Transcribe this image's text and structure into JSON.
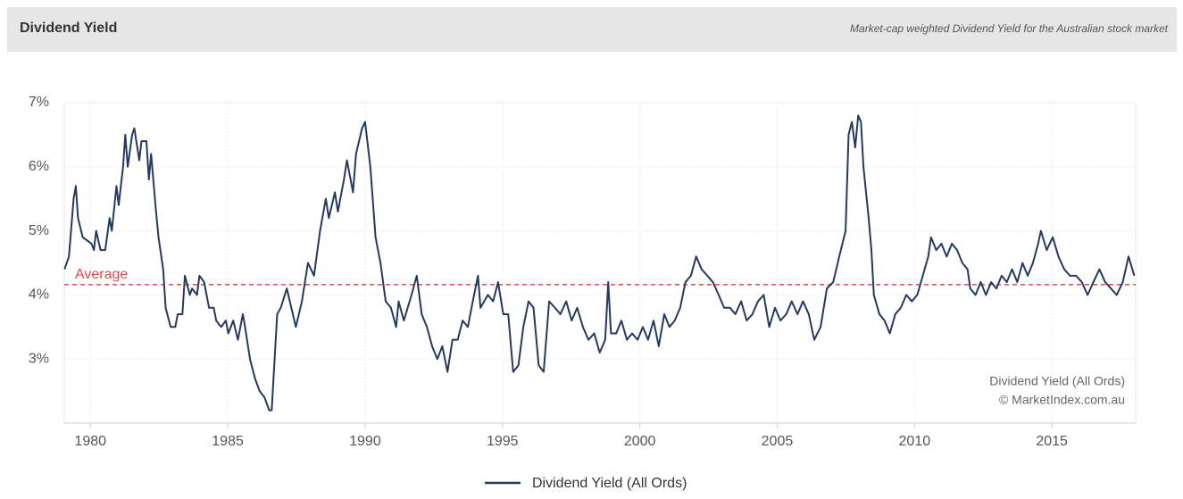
{
  "chart_data": {
    "type": "line",
    "title": "Dividend Yield",
    "subtitle": "Market-cap weighted Dividend Yield for the Australian stock market",
    "x": [
      1979.06,
      1979.22,
      1979.39,
      1979.47,
      1979.55,
      1979.72,
      1979.88,
      1980.04,
      1980.13,
      1980.21,
      1980.37,
      1980.54,
      1980.7,
      1980.78,
      1980.95,
      1981.03,
      1981.19,
      1981.27,
      1981.36,
      1981.52,
      1981.6,
      1981.78,
      1981.86,
      1982.04,
      1982.13,
      1982.21,
      1982.39,
      1982.48,
      1982.65,
      1982.74,
      1982.92,
      1983.09,
      1983.18,
      1983.35,
      1983.44,
      1983.62,
      1983.7,
      1983.88,
      1983.97,
      1984.14,
      1984.32,
      1984.49,
      1984.58,
      1984.76,
      1984.93,
      1985.02,
      1985.2,
      1985.37,
      1985.55,
      1985.63,
      1985.81,
      1985.99,
      1986.16,
      1986.34,
      1986.51,
      1986.6,
      1986.8,
      1986.93,
      1987.15,
      1987.37,
      1987.48,
      1987.7,
      1987.92,
      1988.14,
      1988.36,
      1988.57,
      1988.68,
      1988.9,
      1989.01,
      1989.23,
      1989.34,
      1989.56,
      1989.67,
      1989.89,
      1990.0,
      1990.19,
      1990.38,
      1990.56,
      1990.75,
      1990.94,
      1991.13,
      1991.22,
      1991.41,
      1991.69,
      1991.88,
      1992.06,
      1992.25,
      1992.44,
      1992.63,
      1992.81,
      1993.0,
      1993.18,
      1993.37,
      1993.55,
      1993.74,
      1993.92,
      1994.11,
      1994.2,
      1994.47,
      1994.66,
      1994.84,
      1995.03,
      1995.21,
      1995.39,
      1995.58,
      1995.76,
      1995.95,
      1996.13,
      1996.32,
      1996.5,
      1996.7,
      1996.91,
      1997.11,
      1997.32,
      1997.52,
      1997.72,
      1997.93,
      1998.13,
      1998.34,
      1998.54,
      1998.74,
      1998.85,
      1998.95,
      1999.14,
      1999.33,
      1999.53,
      1999.72,
      1999.92,
      2000.11,
      2000.3,
      2000.5,
      2000.69,
      2000.89,
      2001.08,
      2001.27,
      2001.47,
      2001.66,
      2001.86,
      2002.05,
      2002.25,
      2002.46,
      2002.66,
      2002.87,
      2003.07,
      2003.28,
      2003.48,
      2003.69,
      2003.89,
      2004.1,
      2004.3,
      2004.51,
      2004.71,
      2004.92,
      2005.12,
      2005.33,
      2005.53,
      2005.74,
      2005.94,
      2006.15,
      2006.35,
      2006.58,
      2006.81,
      2007.04,
      2007.26,
      2007.49,
      2007.6,
      2007.72,
      2007.84,
      2007.95,
      2008.05,
      2008.14,
      2008.33,
      2008.43,
      2008.52,
      2008.72,
      2008.91,
      2009.1,
      2009.3,
      2009.5,
      2009.7,
      2009.9,
      2010.1,
      2010.3,
      2010.5,
      2010.6,
      2010.79,
      2010.98,
      2011.17,
      2011.36,
      2011.55,
      2011.74,
      2011.93,
      2012.03,
      2012.22,
      2012.41,
      2012.6,
      2012.79,
      2012.98,
      2013.17,
      2013.36,
      2013.55,
      2013.74,
      2013.93,
      2014.12,
      2014.31,
      2014.5,
      2014.6,
      2014.81,
      2015.03,
      2015.24,
      2015.45,
      2015.66,
      2015.88,
      2016.09,
      2016.3,
      2016.51,
      2016.73,
      2016.94,
      2017.15,
      2017.36,
      2017.58,
      2017.79,
      2018.0
    ],
    "series": [
      {
        "name": "Dividend Yield (All Ords)",
        "color": "#253a5e",
        "values": [
          4.4,
          4.6,
          5.5,
          5.7,
          5.2,
          4.9,
          4.85,
          4.8,
          4.7,
          5.0,
          4.7,
          4.7,
          5.2,
          5.0,
          5.7,
          5.4,
          6.0,
          6.5,
          6.0,
          6.5,
          6.6,
          6.1,
          6.4,
          6.4,
          5.8,
          6.2,
          5.3,
          4.9,
          4.4,
          3.8,
          3.5,
          3.5,
          3.7,
          3.7,
          4.3,
          4.0,
          4.1,
          4.0,
          4.3,
          4.2,
          3.8,
          3.8,
          3.6,
          3.5,
          3.6,
          3.4,
          3.6,
          3.3,
          3.7,
          3.5,
          3.0,
          2.7,
          2.5,
          2.4,
          2.2,
          2.2,
          3.7,
          3.8,
          4.1,
          3.7,
          3.5,
          3.9,
          4.5,
          4.3,
          5.0,
          5.5,
          5.2,
          5.6,
          5.3,
          5.8,
          6.1,
          5.6,
          6.2,
          6.6,
          6.7,
          6.0,
          4.9,
          4.5,
          3.9,
          3.8,
          3.5,
          3.9,
          3.6,
          4.0,
          4.3,
          3.7,
          3.5,
          3.2,
          3.0,
          3.2,
          2.8,
          3.3,
          3.3,
          3.6,
          3.5,
          3.9,
          4.3,
          3.8,
          4.0,
          3.9,
          4.2,
          3.7,
          3.7,
          2.8,
          2.9,
          3.5,
          3.9,
          3.8,
          2.9,
          2.8,
          3.9,
          3.8,
          3.7,
          3.9,
          3.6,
          3.8,
          3.5,
          3.3,
          3.4,
          3.1,
          3.3,
          4.2,
          3.4,
          3.4,
          3.6,
          3.3,
          3.4,
          3.3,
          3.5,
          3.3,
          3.6,
          3.2,
          3.7,
          3.5,
          3.6,
          3.8,
          4.2,
          4.3,
          4.6,
          4.4,
          4.3,
          4.2,
          4.0,
          3.8,
          3.8,
          3.7,
          3.9,
          3.6,
          3.7,
          3.9,
          4.0,
          3.5,
          3.8,
          3.6,
          3.7,
          3.9,
          3.7,
          3.9,
          3.7,
          3.3,
          3.5,
          4.1,
          4.2,
          4.6,
          5.0,
          6.5,
          6.7,
          6.3,
          6.8,
          6.7,
          6.0,
          5.2,
          4.7,
          4.0,
          3.7,
          3.6,
          3.4,
          3.7,
          3.8,
          4.0,
          3.9,
          4.0,
          4.3,
          4.6,
          4.9,
          4.7,
          4.8,
          4.6,
          4.8,
          4.7,
          4.5,
          4.4,
          4.1,
          4.0,
          4.2,
          4.0,
          4.2,
          4.1,
          4.3,
          4.2,
          4.4,
          4.2,
          4.5,
          4.3,
          4.5,
          4.8,
          5.0,
          4.7,
          4.9,
          4.6,
          4.4,
          4.3,
          4.3,
          4.2,
          4.0,
          4.2,
          4.4,
          4.2,
          4.1,
          4.0,
          4.2,
          4.6,
          4.3
        ]
      }
    ],
    "xlim": [
      1979.05,
      2018.05
    ],
    "ylim": [
      2,
      7
    ],
    "xticks": [
      1980,
      1985,
      1990,
      1995,
      2000,
      2005,
      2010,
      2015
    ],
    "yticks": [
      {
        "value": 3,
        "label": "3%"
      },
      {
        "value": 4,
        "label": "4%"
      },
      {
        "value": 5,
        "label": "5%"
      },
      {
        "value": 6,
        "label": "6%"
      },
      {
        "value": 7,
        "label": "7%"
      }
    ],
    "grid": true,
    "average": {
      "value": 4.16,
      "label": "Average",
      "color": "#e0474c"
    },
    "credits": [
      "Dividend Yield (All Ords)",
      "© MarketIndex.com.au"
    ]
  }
}
